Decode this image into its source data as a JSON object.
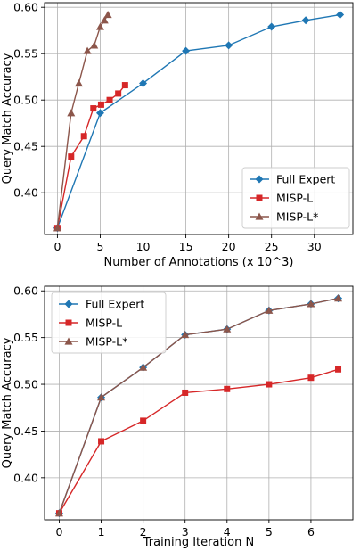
{
  "chart_data": [
    {
      "type": "line",
      "xlabel": "Number of Annotations (x 10^3)",
      "ylabel": "Query Match Accuracy",
      "xlim": [
        -1.5,
        34.5
      ],
      "ylim": [
        0.355,
        0.605
      ],
      "xticks": [
        0,
        5,
        10,
        15,
        20,
        25,
        30
      ],
      "yticks": [
        0.4,
        0.45,
        0.5,
        0.55,
        0.6
      ],
      "xtick_labels": [
        "0",
        "5",
        "10",
        "15",
        "20",
        "25",
        "30"
      ],
      "ytick_labels": [
        "0.40",
        "0.45",
        "0.50",
        "0.55",
        "0.60"
      ],
      "grid": true,
      "legend_position": "lower-right",
      "series": [
        {
          "name": "Full Expert",
          "color": "#1f77b4",
          "marker": "diamond",
          "x": [
            0,
            5,
            10,
            15,
            20,
            25,
            29,
            33
          ],
          "y": [
            0.362,
            0.486,
            0.518,
            0.553,
            0.559,
            0.579,
            0.586,
            0.592
          ]
        },
        {
          "name": "MISP-L",
          "color": "#d62728",
          "marker": "square",
          "x": [
            0,
            1.6,
            3.1,
            4.2,
            5.1,
            6.1,
            7.1,
            7.9
          ],
          "y": [
            0.362,
            0.439,
            0.461,
            0.491,
            0.495,
            0.5,
            0.507,
            0.516
          ]
        },
        {
          "name": "MISP-L*",
          "color": "#8c564b",
          "marker": "triangle",
          "x": [
            0,
            1.6,
            2.5,
            3.5,
            4.3,
            5.0,
            5.5,
            5.9
          ],
          "y": [
            0.362,
            0.486,
            0.518,
            0.553,
            0.559,
            0.579,
            0.586,
            0.592
          ]
        }
      ]
    },
    {
      "type": "line",
      "xlabel": "Training Iteration N",
      "ylabel": "Query Match Accuracy",
      "xlim": [
        -0.35,
        7.0
      ],
      "ylim": [
        0.355,
        0.605
      ],
      "xticks": [
        0,
        1,
        2,
        3,
        4,
        5,
        6
      ],
      "yticks": [
        0.4,
        0.45,
        0.5,
        0.55,
        0.6
      ],
      "xtick_labels": [
        "0",
        "1",
        "2",
        "3",
        "4",
        "5",
        "6"
      ],
      "ytick_labels": [
        "0.40",
        "0.45",
        "0.50",
        "0.55",
        "0.60"
      ],
      "grid": true,
      "legend_position": "upper-left",
      "series": [
        {
          "name": "Full Expert",
          "color": "#1f77b4",
          "marker": "diamond",
          "x": [
            0,
            1,
            2,
            3,
            4,
            5,
            6,
            6.65
          ],
          "y": [
            0.362,
            0.486,
            0.518,
            0.553,
            0.559,
            0.579,
            0.586,
            0.592
          ]
        },
        {
          "name": "MISP-L",
          "color": "#d62728",
          "marker": "square",
          "x": [
            0,
            1,
            2,
            3,
            4,
            5,
            6,
            6.65
          ],
          "y": [
            0.362,
            0.439,
            0.461,
            0.491,
            0.495,
            0.5,
            0.507,
            0.516
          ]
        },
        {
          "name": "MISP-L*",
          "color": "#8c564b",
          "marker": "triangle",
          "x": [
            0,
            1,
            2,
            3,
            4,
            5,
            6,
            6.65
          ],
          "y": [
            0.362,
            0.486,
            0.518,
            0.553,
            0.559,
            0.579,
            0.586,
            0.592
          ]
        }
      ]
    }
  ]
}
